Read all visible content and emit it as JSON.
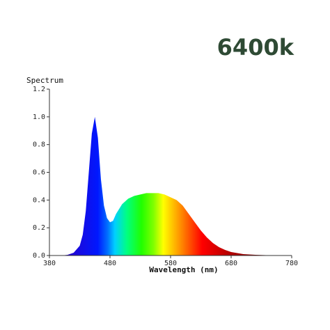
{
  "chart_data": {
    "type": "area",
    "title": "6400k",
    "ylabel": "Spectrum",
    "xlabel": "Wavelength (nm)",
    "x": [
      380,
      400,
      410,
      420,
      430,
      435,
      440,
      445,
      450,
      455,
      460,
      465,
      470,
      475,
      480,
      485,
      490,
      500,
      510,
      520,
      530,
      540,
      550,
      560,
      570,
      580,
      590,
      600,
      610,
      620,
      630,
      640,
      650,
      660,
      670,
      680,
      700,
      720,
      740,
      780
    ],
    "y": [
      0,
      0,
      0.005,
      0.02,
      0.07,
      0.15,
      0.32,
      0.6,
      0.88,
      1.0,
      0.85,
      0.55,
      0.36,
      0.27,
      0.24,
      0.25,
      0.3,
      0.37,
      0.41,
      0.43,
      0.44,
      0.45,
      0.45,
      0.45,
      0.44,
      0.42,
      0.4,
      0.36,
      0.3,
      0.24,
      0.18,
      0.13,
      0.09,
      0.06,
      0.04,
      0.025,
      0.01,
      0.005,
      0.002,
      0
    ],
    "xlim": [
      380,
      780
    ],
    "ylim": [
      0,
      1.2
    ],
    "xticks": [
      380,
      480,
      580,
      680,
      780
    ],
    "yticks": [
      {
        "value": 0,
        "label": "0.0"
      },
      0.2,
      0.4,
      0.6,
      0.8,
      {
        "value": 1,
        "label": "1.0"
      },
      1.2
    ]
  }
}
